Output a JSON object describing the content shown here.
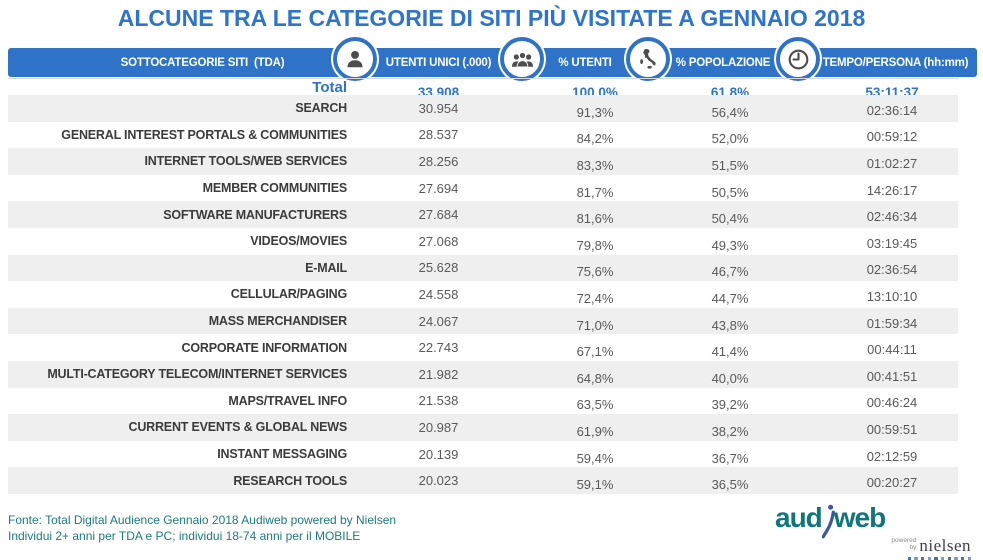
{
  "title": "ALCUNE TRA LE CATEGORIE DI SITI PIÙ VISITATE A GENNAIO 2018",
  "colors": {
    "accent_blue": "#2d74cc",
    "bar_blue": "#2e73c8",
    "stripe_gray": "#efefef",
    "category_text": "#3b3b3b",
    "value_text": "#595959",
    "footer_teal": "#1b7a80",
    "logo_teal": "#0f767d",
    "nielsen_gray": "#41414b",
    "icon_gray": "#4d4d4d"
  },
  "table": {
    "category_header": "SOTTOCATEGORIE SITI  (TDA)",
    "columns": [
      {
        "icon": "person-icon",
        "label": "UTENTI UNICI (.000)"
      },
      {
        "icon": "people-group-icon",
        "label": "% UTENTI"
      },
      {
        "icon": "italy-map-icon",
        "label": "% POPOLAZIONE"
      },
      {
        "icon": "clock-icon",
        "label": "TEMPO/PERSONA (hh:mm)"
      }
    ],
    "total_row": {
      "label": "Total",
      "unique_users": "33.908",
      "pct_users": "100,0%",
      "pct_population": "61,8%",
      "time_per_person": "53:11:37"
    },
    "rows": [
      {
        "category": "SEARCH",
        "unique_users": "30.954",
        "pct_users": "91,3%",
        "pct_population": "56,4%",
        "time_per_person": "02:36:14"
      },
      {
        "category": "GENERAL INTEREST PORTALS & COMMUNITIES",
        "unique_users": "28.537",
        "pct_users": "84,2%",
        "pct_population": "52,0%",
        "time_per_person": "00:59:12"
      },
      {
        "category": "INTERNET TOOLS/WEB SERVICES",
        "unique_users": "28.256",
        "pct_users": "83,3%",
        "pct_population": "51,5%",
        "time_per_person": "01:02:27"
      },
      {
        "category": "MEMBER COMMUNITIES",
        "unique_users": "27.694",
        "pct_users": "81,7%",
        "pct_population": "50,5%",
        "time_per_person": "14:26:17"
      },
      {
        "category": "SOFTWARE MANUFACTURERS",
        "unique_users": "27.684",
        "pct_users": "81,6%",
        "pct_population": "50,4%",
        "time_per_person": "02:46:34"
      },
      {
        "category": "VIDEOS/MOVIES",
        "unique_users": "27.068",
        "pct_users": "79,8%",
        "pct_population": "49,3%",
        "time_per_person": "03:19:45"
      },
      {
        "category": "E-MAIL",
        "unique_users": "25.628",
        "pct_users": "75,6%",
        "pct_population": "46,7%",
        "time_per_person": "02:36:54"
      },
      {
        "category": "CELLULAR/PAGING",
        "unique_users": "24.558",
        "pct_users": "72,4%",
        "pct_population": "44,7%",
        "time_per_person": "13:10:10"
      },
      {
        "category": "MASS MERCHANDISER",
        "unique_users": "24.067",
        "pct_users": "71,0%",
        "pct_population": "43,8%",
        "time_per_person": "01:59:34"
      },
      {
        "category": "CORPORATE INFORMATION",
        "unique_users": "22.743",
        "pct_users": "67,1%",
        "pct_population": "41,4%",
        "time_per_person": "00:44:11"
      },
      {
        "category": "MULTI-CATEGORY TELECOM/INTERNET SERVICES",
        "unique_users": "21.982",
        "pct_users": "64,8%",
        "pct_population": "40,0%",
        "time_per_person": "00:41:51"
      },
      {
        "category": "MAPS/TRAVEL INFO",
        "unique_users": "21.538",
        "pct_users": "63,5%",
        "pct_population": "39,2%",
        "time_per_person": "00:46:24"
      },
      {
        "category": "CURRENT EVENTS & GLOBAL NEWS",
        "unique_users": "20.987",
        "pct_users": "61,9%",
        "pct_population": "38,2%",
        "time_per_person": "00:59:51"
      },
      {
        "category": "INSTANT MESSAGING",
        "unique_users": "20.139",
        "pct_users": "59,4%",
        "pct_population": "36,7%",
        "time_per_person": "02:12:59"
      },
      {
        "category": "RESEARCH TOOLS",
        "unique_users": "20.023",
        "pct_users": "59,1%",
        "pct_population": "36,5%",
        "time_per_person": "00:20:27"
      }
    ]
  },
  "footer": {
    "source_line1": "Fonte: Total Digital Audience Gennaio 2018 Audiweb powered by Nielsen",
    "source_line2": "Individui 2+ anni per TDA e PC; individui 18-74 anni per il MOBILE"
  },
  "logo": {
    "brand_part1": "aud",
    "brand_part2": "web",
    "powered_word1": "powered",
    "powered_word2": "by",
    "partner": "nielsen"
  },
  "chart_data": {
    "type": "table",
    "title": "ALCUNE TRA LE CATEGORIE DI SITI PIÙ VISITATE A GENNAIO 2018",
    "columns": [
      "SOTTOCATEGORIE SITI (TDA)",
      "UTENTI UNICI (.000)",
      "% UTENTI",
      "% POPOLAZIONE",
      "TEMPO/PERSONA (hh:mm)"
    ],
    "total": [
      "Total",
      33908,
      100.0,
      61.8,
      "53:11:37"
    ],
    "rows": [
      [
        "SEARCH",
        30954,
        91.3,
        56.4,
        "02:36:14"
      ],
      [
        "GENERAL INTEREST PORTALS & COMMUNITIES",
        28537,
        84.2,
        52.0,
        "00:59:12"
      ],
      [
        "INTERNET TOOLS/WEB SERVICES",
        28256,
        83.3,
        51.5,
        "01:02:27"
      ],
      [
        "MEMBER COMMUNITIES",
        27694,
        81.7,
        50.5,
        "14:26:17"
      ],
      [
        "SOFTWARE MANUFACTURERS",
        27684,
        81.6,
        50.4,
        "02:46:34"
      ],
      [
        "VIDEOS/MOVIES",
        27068,
        79.8,
        49.3,
        "03:19:45"
      ],
      [
        "E-MAIL",
        25628,
        75.6,
        46.7,
        "02:36:54"
      ],
      [
        "CELLULAR/PAGING",
        24558,
        72.4,
        44.7,
        "13:10:10"
      ],
      [
        "MASS MERCHANDISER",
        24067,
        71.0,
        43.8,
        "01:59:34"
      ],
      [
        "CORPORATE INFORMATION",
        22743,
        67.1,
        41.4,
        "00:44:11"
      ],
      [
        "MULTI-CATEGORY TELECOM/INTERNET SERVICES",
        21982,
        64.8,
        40.0,
        "00:41:51"
      ],
      [
        "MAPS/TRAVEL INFO",
        21538,
        63.5,
        39.2,
        "00:46:24"
      ],
      [
        "CURRENT EVENTS & GLOBAL NEWS",
        20987,
        61.9,
        38.2,
        "00:59:51"
      ],
      [
        "INSTANT MESSAGING",
        20139,
        59.4,
        36.7,
        "02:12:59"
      ],
      [
        "RESEARCH TOOLS",
        20023,
        59.1,
        36.5,
        "00:20:27"
      ]
    ],
    "notes": "Fonte: Total Digital Audience Gennaio 2018 Audiweb powered by Nielsen. Individui 2+ anni per TDA e PC; individui 18-74 anni per il MOBILE",
    "stripe_rows": "odd data rows shaded #efefef"
  }
}
